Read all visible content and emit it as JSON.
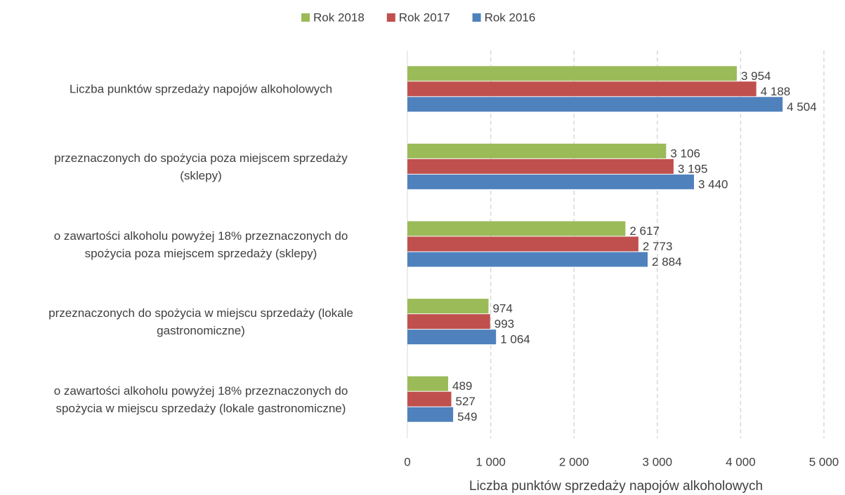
{
  "chart_data": {
    "type": "bar",
    "orientation": "horizontal",
    "xlabel": "Liczba punktów sprzedaży napojów alkoholowych",
    "categories": [
      "Liczba punktów sprzedaży napojów alkoholowych",
      "przeznaczonych do spożycia poza miejscem sprzedaży\n(sklepy)",
      "o zawartości alkoholu powyżej 18% przeznaczonych do\nspożycia poza miejscem sprzedaży (sklepy)",
      "przeznaczonych do spożycia w miejscu sprzedaży (lokale\ngastronomiczne)",
      "o zawartości alkoholu powyżej 18% przeznaczonych do\nspożycia w miejscu sprzedaży (lokale gastronomiczne)"
    ],
    "series": [
      {
        "name": "Rok 2018",
        "color": "#9bbb59",
        "values": [
          3954,
          3106,
          2617,
          974,
          489
        ],
        "value_labels": [
          "3 954",
          "3 106",
          "2 617",
          "974",
          "489"
        ]
      },
      {
        "name": "Rok 2017",
        "color": "#c0504d",
        "values": [
          4188,
          3195,
          2773,
          993,
          527
        ],
        "value_labels": [
          "4 188",
          "3 195",
          "2 773",
          "993",
          "527"
        ]
      },
      {
        "name": "Rok 2016",
        "color": "#4f81bd",
        "values": [
          4504,
          3440,
          2884,
          1064,
          549
        ],
        "value_labels": [
          "4 504",
          "3 440",
          "2 884",
          "1 064",
          "549"
        ]
      }
    ],
    "xlim": [
      0,
      5000
    ],
    "xticks": [
      0,
      {
        "value": 1000,
        "label": "1 000"
      },
      {
        "value": 2000,
        "label": "2 000"
      },
      {
        "value": 3000,
        "label": "3 000"
      },
      {
        "value": 4000,
        "label": "4 000"
      },
      {
        "value": 5000,
        "label": "5 000"
      }
    ],
    "grid": true,
    "legend": "top"
  }
}
